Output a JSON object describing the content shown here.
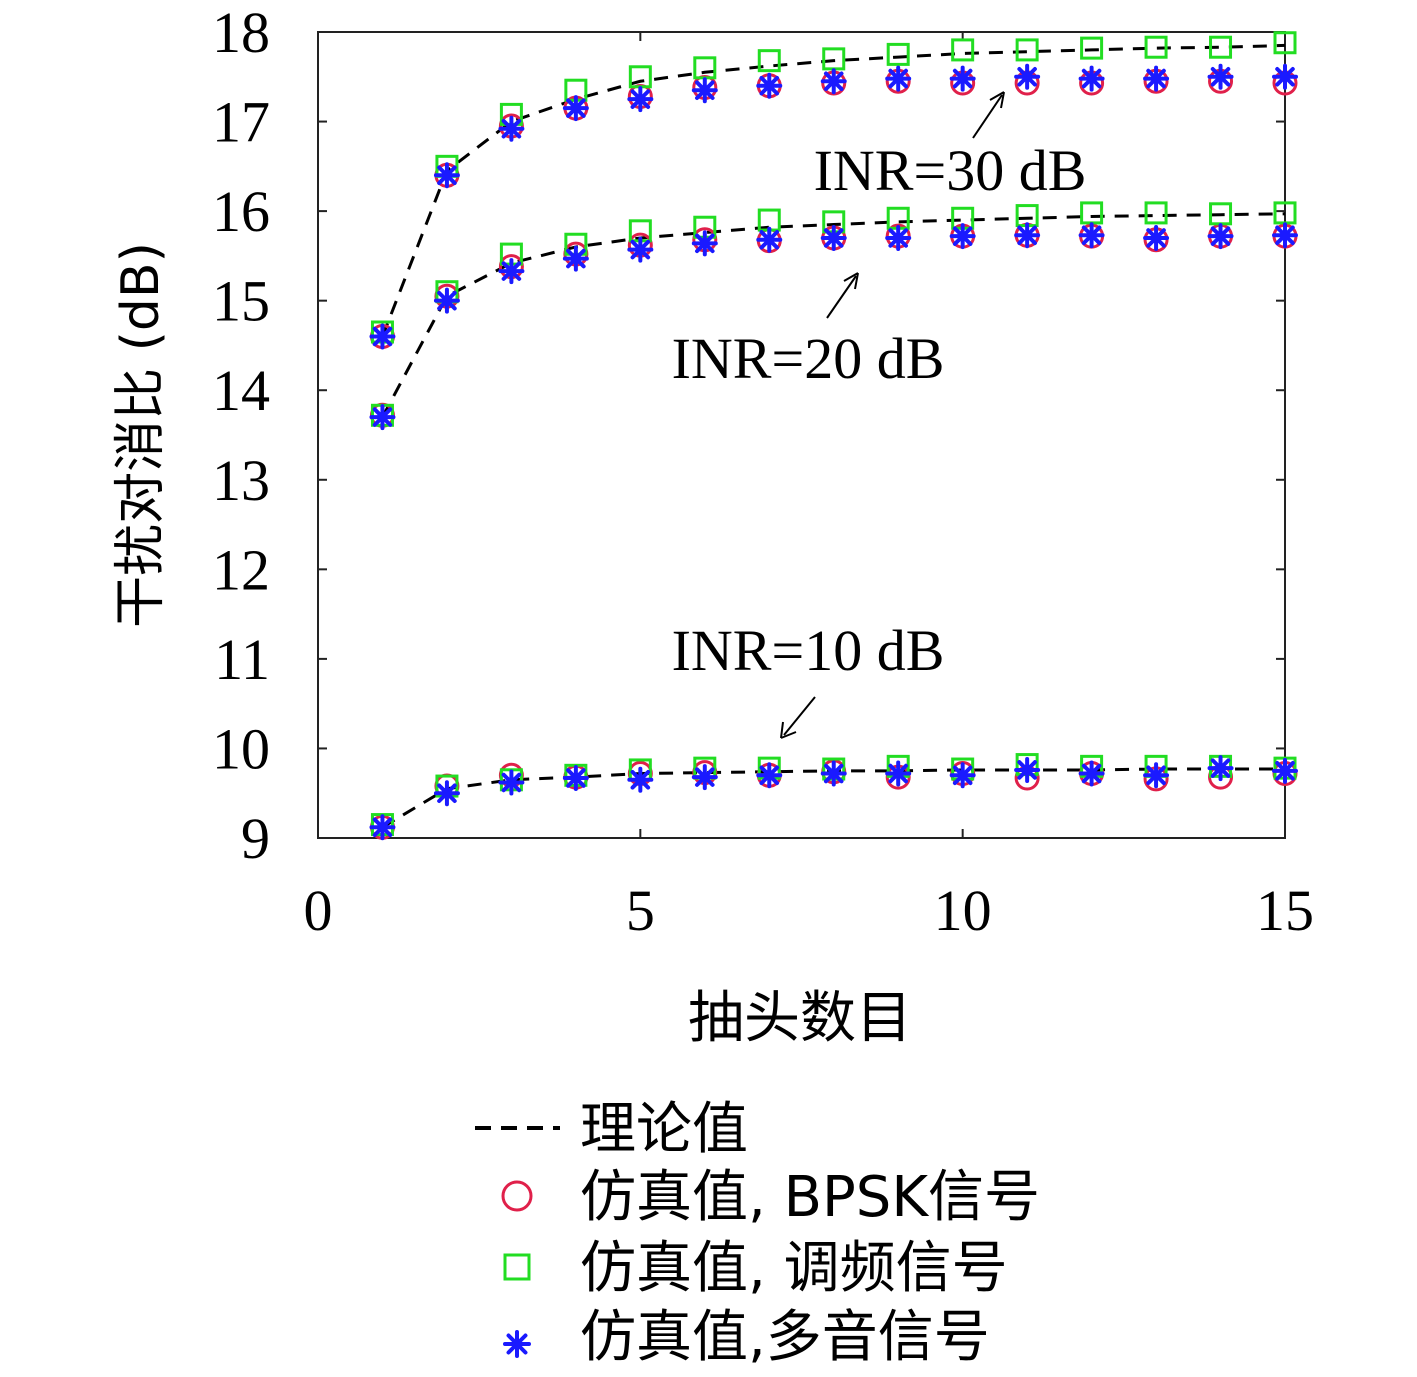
{
  "chart_data": {
    "type": "scatter",
    "title": "",
    "xlabel": "抽头数目",
    "ylabel": "干扰对消比 (dB)",
    "xlim": [
      0,
      15
    ],
    "ylim": [
      9,
      18
    ],
    "xticks": [
      0,
      5,
      10,
      15
    ],
    "yticks": [
      9,
      10,
      11,
      12,
      13,
      14,
      15,
      16,
      17,
      18
    ],
    "grid": false,
    "legend_position": "below-plot",
    "x": [
      1,
      2,
      3,
      4,
      5,
      6,
      7,
      8,
      9,
      10,
      11,
      12,
      13,
      14,
      15
    ],
    "legend": [
      {
        "label": "理论值",
        "marker": "dashed-line",
        "color": "#000000"
      },
      {
        "label": "仿真值, BPSK信号",
        "marker": "circle",
        "color": "#e0204a"
      },
      {
        "label": "仿真值, 调频信号",
        "marker": "square",
        "color": "#22dd22"
      },
      {
        "label": "仿真值,多音信号",
        "marker": "star",
        "color": "#1a1aff"
      }
    ],
    "groups": [
      {
        "annotation": "INR=10 dB",
        "theory": [
          9.12,
          9.55,
          9.65,
          9.68,
          9.72,
          9.73,
          9.74,
          9.75,
          9.75,
          9.76,
          9.76,
          9.76,
          9.77,
          9.77,
          9.77
        ],
        "bpsk": [
          9.12,
          9.58,
          9.7,
          9.68,
          9.72,
          9.73,
          9.7,
          9.74,
          9.68,
          9.72,
          9.67,
          9.72,
          9.66,
          9.68,
          9.72
        ],
        "fm": [
          9.15,
          9.58,
          9.65,
          9.7,
          9.76,
          9.78,
          9.78,
          9.77,
          9.8,
          9.77,
          9.82,
          9.8,
          9.8,
          9.8,
          9.78
        ],
        "multitone": [
          9.12,
          9.5,
          9.62,
          9.67,
          9.65,
          9.68,
          9.7,
          9.72,
          9.72,
          9.7,
          9.76,
          9.72,
          9.7,
          9.78,
          9.75
        ]
      },
      {
        "annotation": "INR=20 dB",
        "theory": [
          13.7,
          15.05,
          15.42,
          15.6,
          15.7,
          15.76,
          15.82,
          15.85,
          15.88,
          15.9,
          15.92,
          15.94,
          15.95,
          15.96,
          15.97
        ],
        "bpsk": [
          13.72,
          15.05,
          15.38,
          15.52,
          15.62,
          15.68,
          15.67,
          15.7,
          15.72,
          15.72,
          15.73,
          15.72,
          15.68,
          15.72,
          15.72
        ],
        "fm": [
          13.72,
          15.1,
          15.52,
          15.63,
          15.78,
          15.82,
          15.9,
          15.88,
          15.92,
          15.92,
          15.95,
          15.98,
          15.98,
          15.97,
          15.98
        ],
        "multitone": [
          13.7,
          15.0,
          15.33,
          15.47,
          15.57,
          15.64,
          15.68,
          15.7,
          15.7,
          15.72,
          15.73,
          15.73,
          15.7,
          15.72,
          15.73
        ]
      },
      {
        "annotation": "INR=30 dB",
        "theory": [
          14.6,
          16.45,
          17.0,
          17.25,
          17.45,
          17.55,
          17.62,
          17.68,
          17.72,
          17.76,
          17.78,
          17.8,
          17.82,
          17.83,
          17.85
        ],
        "bpsk": [
          14.6,
          16.4,
          16.95,
          17.15,
          17.28,
          17.38,
          17.4,
          17.43,
          17.45,
          17.43,
          17.43,
          17.43,
          17.45,
          17.45,
          17.43
        ],
        "fm": [
          14.65,
          16.5,
          17.08,
          17.35,
          17.5,
          17.6,
          17.68,
          17.7,
          17.75,
          17.8,
          17.8,
          17.82,
          17.83,
          17.83,
          17.88
        ],
        "multitone": [
          14.6,
          16.4,
          16.92,
          17.15,
          17.25,
          17.35,
          17.4,
          17.45,
          17.48,
          17.48,
          17.5,
          17.48,
          17.48,
          17.5,
          17.5
        ]
      }
    ]
  }
}
